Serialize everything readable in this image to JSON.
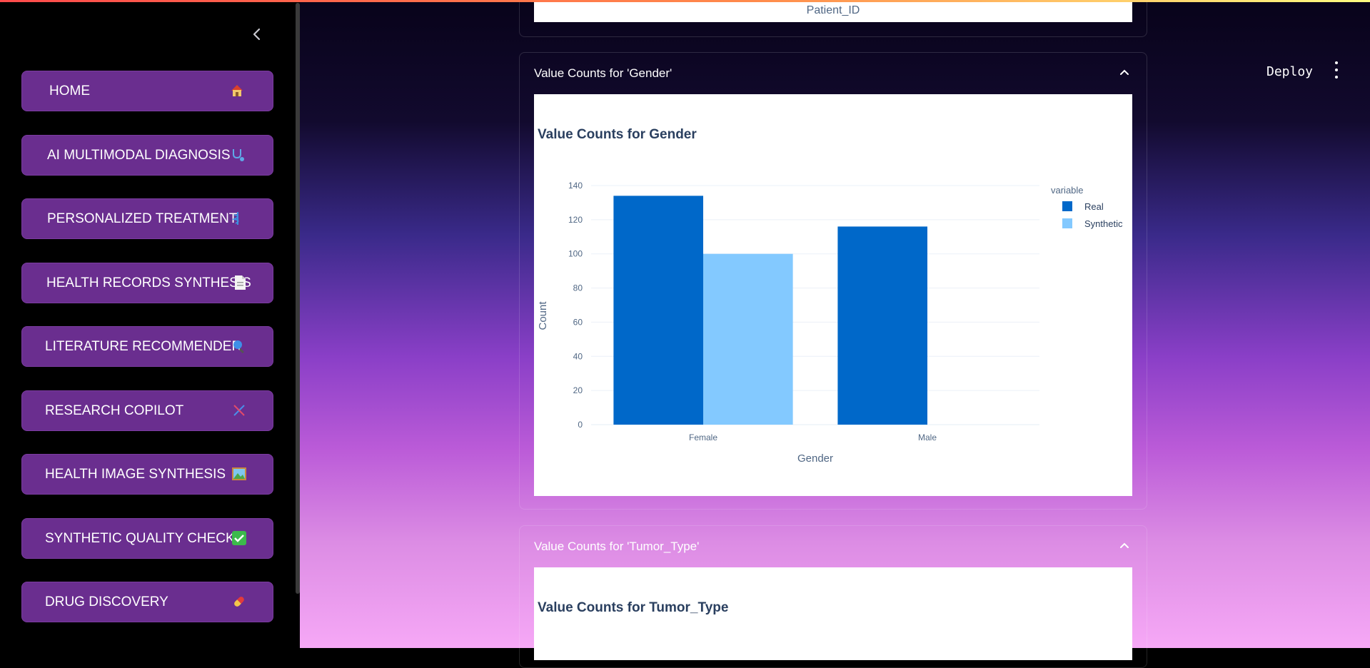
{
  "sidebar": {
    "collapse_icon": "chevron-left-icon",
    "items": [
      {
        "label": "HOME",
        "icon": "house-icon"
      },
      {
        "label": "AI MULTIMODAL DIAGNOSIS",
        "icon": "stethoscope-icon"
      },
      {
        "label": "PERSONALIZED TREATMENT",
        "icon": "medical-symbol-icon"
      },
      {
        "label": "HEALTH RECORDS SYNTHESIS",
        "icon": "document-icon"
      },
      {
        "label": "LITERATURE RECOMMENDER",
        "icon": "magnifier-icon"
      },
      {
        "label": "RESEARCH COPILOT",
        "icon": "dna-icon"
      },
      {
        "label": "HEALTH IMAGE SYNTHESIS",
        "icon": "framed-picture-icon"
      },
      {
        "label": "SYNTHETIC QUALITY CHECK",
        "icon": "check-mark-icon"
      },
      {
        "label": "DRUG DISCOVERY",
        "icon": "pill-icon"
      }
    ]
  },
  "header": {
    "deploy_label": "Deploy",
    "menu_icon": "kebab-menu-icon"
  },
  "main": {
    "prev_axis_label": "Patient_ID",
    "expanders": [
      {
        "header": "Value Counts for 'Gender'",
        "chart_title": "Value Counts for Gender"
      },
      {
        "header": "Value Counts for 'Tumor_Type'",
        "chart_title": "Value Counts for Tumor_Type"
      }
    ]
  },
  "chart_data": {
    "type": "bar",
    "title": "Value Counts for Gender",
    "xlabel": "Gender",
    "ylabel": "Count",
    "categories": [
      "Female",
      "Male"
    ],
    "series": [
      {
        "name": "Real",
        "values": [
          134,
          116
        ],
        "color": "#0068c9"
      },
      {
        "name": "Synthetic",
        "values": [
          100,
          0
        ],
        "color": "#83c9ff"
      }
    ],
    "legend_title": "variable",
    "legend_position": "top-right",
    "yticks": [
      0,
      20,
      40,
      60,
      80,
      100,
      120,
      140
    ],
    "ylim": [
      0,
      140
    ],
    "grid": true
  }
}
